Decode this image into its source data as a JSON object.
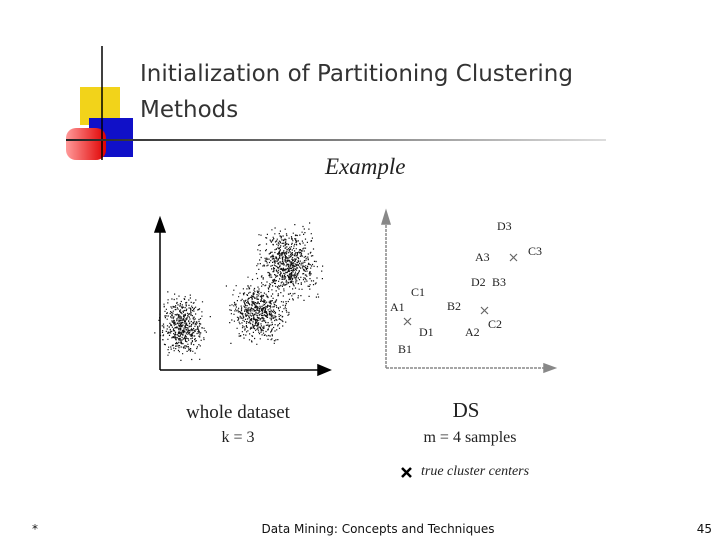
{
  "header": {
    "title_lines": [
      "Initialization of Partitioning Clustering",
      "Methods"
    ]
  },
  "example": "Example",
  "left": {
    "caption": "whole dataset",
    "param": "k = 3"
  },
  "right": {
    "caption": "DS",
    "param": "m = 4 samples",
    "legend": "true cluster centers",
    "points": [
      "D3",
      "A3",
      "C3",
      "D2",
      "B3",
      "C1",
      "A1",
      "B2",
      "D1",
      "A2",
      "C2",
      "B1"
    ]
  },
  "footer": {
    "left": "*",
    "center": "Data Mining: Concepts and Techniques",
    "right": "45"
  }
}
